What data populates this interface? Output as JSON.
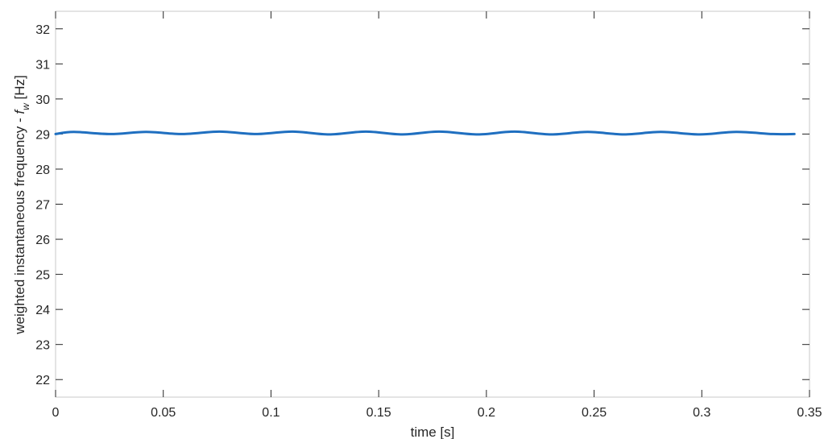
{
  "chart_data": {
    "type": "line",
    "xlabel": "time [s]",
    "ylabel": {
      "prefix": "weighted  instantaneous  frequency  - ",
      "symbol": "f",
      "subscript": "w",
      "unit": " [Hz]"
    },
    "xlim": [
      0,
      0.35
    ],
    "ylim": [
      21.5,
      32.5
    ],
    "xticks": [
      0,
      0.05,
      0.1,
      0.15,
      0.2,
      0.25,
      0.3,
      0.35
    ],
    "xtick_labels": [
      "0",
      "0.05",
      "0.1",
      "0.15",
      "0.2",
      "0.25",
      "0.3",
      "0.35"
    ],
    "yticks": [
      22,
      23,
      24,
      25,
      26,
      27,
      28,
      29,
      30,
      31,
      32
    ],
    "ytick_labels": [
      "22",
      "23",
      "24",
      "25",
      "26",
      "27",
      "28",
      "29",
      "30",
      "31",
      "32"
    ],
    "grid": false,
    "series": [
      {
        "color": "#1f6fc0",
        "x": [
          0,
          0.0085,
          0.0255,
          0.042,
          0.059,
          0.076,
          0.093,
          0.11,
          0.127,
          0.144,
          0.161,
          0.178,
          0.196,
          0.213,
          0.23,
          0.247,
          0.264,
          0.281,
          0.299,
          0.316,
          0.333,
          0.343
        ],
        "y": [
          29.0,
          29.06,
          29.0,
          29.06,
          29.0,
          29.07,
          29.0,
          29.07,
          28.99,
          29.07,
          28.99,
          29.07,
          28.99,
          29.07,
          28.99,
          29.06,
          28.99,
          29.06,
          28.99,
          29.06,
          29.0,
          29.0
        ]
      }
    ]
  }
}
